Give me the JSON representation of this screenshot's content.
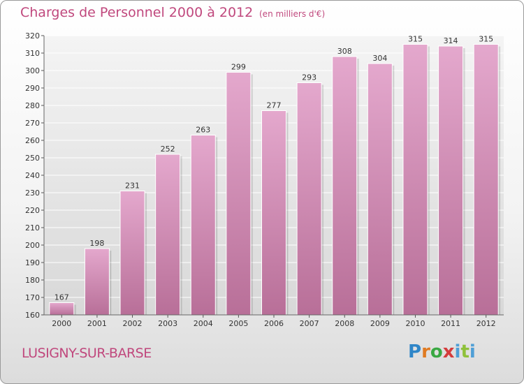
{
  "header": {
    "title": "Charges de Personnel 2000 à 2012",
    "unit": "(en milliers d'€)"
  },
  "footer": {
    "place": "LUSIGNY-SUR-BARSE",
    "logo_text": "Proxiti"
  },
  "colors": {
    "accent": "#c0487d",
    "bar_top": "#e4a8cd",
    "bar_bottom": "#b86f98"
  },
  "chart_data": {
    "type": "bar",
    "title": "Charges de Personnel 2000 à 2012",
    "subtitle": "(en milliers d'€)",
    "xlabel": "",
    "ylabel": "",
    "categories": [
      "2000",
      "2001",
      "2002",
      "2003",
      "2004",
      "2005",
      "2006",
      "2007",
      "2008",
      "2009",
      "2010",
      "2011",
      "2012"
    ],
    "values": [
      167,
      198,
      231,
      252,
      263,
      299,
      277,
      293,
      308,
      304,
      315,
      314,
      315
    ],
    "ylim": [
      160,
      320
    ],
    "yticks": [
      160,
      170,
      180,
      190,
      200,
      210,
      220,
      230,
      240,
      250,
      260,
      270,
      280,
      290,
      300,
      310,
      320
    ],
    "grid": true,
    "legend": "none"
  }
}
